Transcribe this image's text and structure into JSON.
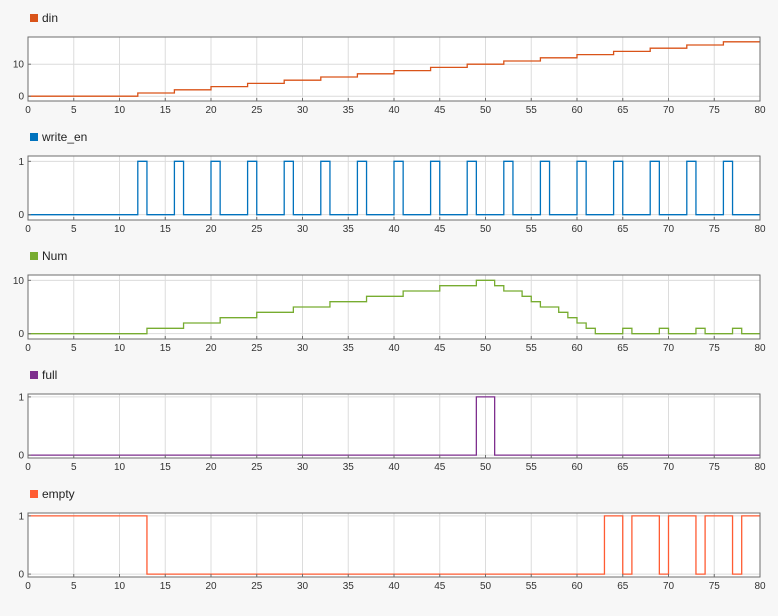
{
  "chart_data": [
    {
      "type": "line",
      "step": true,
      "legend": "top-left",
      "grid": true,
      "color": "#d95319",
      "xlim": [
        0,
        80
      ],
      "ylim": [
        -1.5,
        18.5
      ],
      "xticks": [
        0,
        5,
        10,
        15,
        20,
        25,
        30,
        35,
        40,
        45,
        50,
        55,
        60,
        65,
        70,
        75,
        80
      ],
      "yticks": [
        0,
        10
      ],
      "series": [
        {
          "name": "din",
          "x": [
            0,
            12,
            16,
            20,
            24,
            28,
            32,
            36,
            40,
            44,
            48,
            52,
            56,
            60,
            64,
            68,
            72,
            76,
            80
          ],
          "y": [
            0,
            1,
            2,
            3,
            4,
            5,
            6,
            7,
            8,
            9,
            10,
            11,
            12,
            13,
            14,
            15,
            16,
            17,
            17
          ]
        }
      ]
    },
    {
      "type": "line",
      "step": true,
      "legend": "top-left",
      "grid": true,
      "color": "#0072bd",
      "xlim": [
        0,
        80
      ],
      "ylim": [
        -0.1,
        1.1
      ],
      "xticks": [
        0,
        5,
        10,
        15,
        20,
        25,
        30,
        35,
        40,
        45,
        50,
        55,
        60,
        65,
        70,
        75,
        80
      ],
      "yticks": [
        0,
        1
      ],
      "series": [
        {
          "name": "write_en",
          "x": [
            0,
            12,
            13,
            16,
            17,
            20,
            21,
            24,
            25,
            28,
            29,
            32,
            33,
            36,
            37,
            40,
            41,
            44,
            45,
            48,
            49,
            52,
            53,
            56,
            57,
            60,
            61,
            64,
            65,
            68,
            69,
            72,
            73,
            76,
            77,
            80
          ],
          "y": [
            0,
            1,
            0,
            1,
            0,
            1,
            0,
            1,
            0,
            1,
            0,
            1,
            0,
            1,
            0,
            1,
            0,
            1,
            0,
            1,
            0,
            1,
            0,
            1,
            0,
            1,
            0,
            1,
            0,
            1,
            0,
            1,
            0,
            1,
            0,
            0
          ]
        }
      ]
    },
    {
      "type": "line",
      "step": true,
      "legend": "top-left",
      "grid": true,
      "color": "#77ac30",
      "xlim": [
        0,
        80
      ],
      "ylim": [
        -1,
        11
      ],
      "xticks": [
        0,
        5,
        10,
        15,
        20,
        25,
        30,
        35,
        40,
        45,
        50,
        55,
        60,
        65,
        70,
        75,
        80
      ],
      "yticks": [
        0,
        10
      ],
      "series": [
        {
          "name": "Num",
          "x": [
            0,
            13,
            17,
            21,
            25,
            29,
            33,
            37,
            41,
            45,
            49,
            51,
            52,
            54,
            55,
            56,
            58,
            59,
            60,
            61,
            62,
            63,
            65,
            66,
            69,
            70,
            73,
            74,
            77,
            78,
            80
          ],
          "y": [
            0,
            1,
            2,
            3,
            4,
            5,
            6,
            7,
            8,
            9,
            10,
            9,
            8,
            7,
            6,
            5,
            4,
            3,
            2,
            1,
            0,
            0,
            1,
            0,
            1,
            0,
            1,
            0,
            1,
            0,
            0
          ]
        }
      ]
    },
    {
      "type": "line",
      "step": true,
      "legend": "top-left",
      "grid": true,
      "color": "#7e2f8e",
      "xlim": [
        0,
        80
      ],
      "ylim": [
        -0.05,
        1.05
      ],
      "xticks": [
        0,
        5,
        10,
        15,
        20,
        25,
        30,
        35,
        40,
        45,
        50,
        55,
        60,
        65,
        70,
        75,
        80
      ],
      "yticks": [
        0,
        1
      ],
      "series": [
        {
          "name": "full",
          "x": [
            0,
            49,
            51,
            80
          ],
          "y": [
            0,
            1,
            0,
            0
          ]
        }
      ]
    },
    {
      "type": "line",
      "step": true,
      "legend": "top-left",
      "grid": true,
      "color": "#ff5c33",
      "xlim": [
        0,
        80
      ],
      "ylim": [
        -0.05,
        1.05
      ],
      "xticks": [
        0,
        5,
        10,
        15,
        20,
        25,
        30,
        35,
        40,
        45,
        50,
        55,
        60,
        65,
        70,
        75,
        80
      ],
      "yticks": [
        0,
        1
      ],
      "series": [
        {
          "name": "empty",
          "x": [
            0,
            13,
            63,
            65,
            66,
            69,
            70,
            73,
            74,
            77,
            78,
            80
          ],
          "y": [
            1,
            0,
            1,
            0,
            1,
            0,
            1,
            0,
            1,
            0,
            1,
            1
          ]
        }
      ]
    }
  ]
}
